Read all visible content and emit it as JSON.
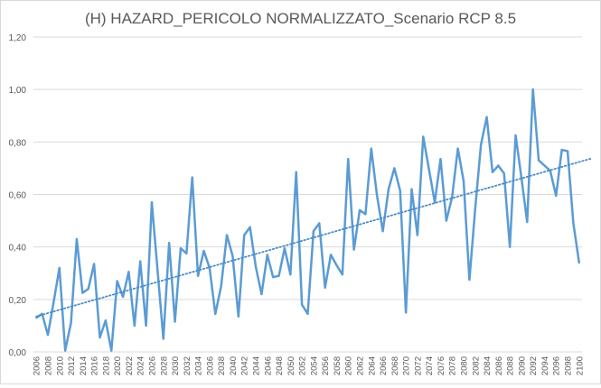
{
  "chart_data": {
    "type": "line",
    "title": "(H) HAZARD_PERICOLO NORMALIZZATO_Scenario RCP 8.5",
    "xlabel": "",
    "ylabel": "",
    "ylim": [
      0,
      1.2
    ],
    "yticks": [
      "0,00",
      "0,20",
      "0,40",
      "0,60",
      "0,80",
      "1,00",
      "1,20"
    ],
    "grid": true,
    "legend": "none",
    "x_tick_labels": [
      "2006",
      "2008",
      "2010",
      "2012",
      "2014",
      "2016",
      "2018",
      "2020",
      "2022",
      "2024",
      "2026",
      "2028",
      "2030",
      "2032",
      "2034",
      "2036",
      "2038",
      "2040",
      "2042",
      "2044",
      "2046",
      "2048",
      "2050",
      "2052",
      "2054",
      "2056",
      "2058",
      "2060",
      "2062",
      "2064",
      "2066",
      "2068",
      "2070",
      "2072",
      "2074",
      "2076",
      "2078",
      "2080",
      "2082",
      "2084",
      "2086",
      "2088",
      "2090",
      "2092",
      "2094",
      "2096",
      "2098",
      "2100"
    ],
    "x": [
      2006,
      2007,
      2008,
      2009,
      2010,
      2011,
      2012,
      2013,
      2014,
      2015,
      2016,
      2017,
      2018,
      2019,
      2020,
      2021,
      2022,
      2023,
      2024,
      2025,
      2026,
      2027,
      2028,
      2029,
      2030,
      2031,
      2032,
      2033,
      2034,
      2035,
      2036,
      2037,
      2038,
      2039,
      2040,
      2041,
      2042,
      2043,
      2044,
      2045,
      2046,
      2047,
      2048,
      2049,
      2050,
      2051,
      2052,
      2053,
      2054,
      2055,
      2056,
      2057,
      2058,
      2059,
      2060,
      2061,
      2062,
      2063,
      2064,
      2065,
      2066,
      2067,
      2068,
      2069,
      2070,
      2071,
      2072,
      2073,
      2074,
      2075,
      2076,
      2077,
      2078,
      2079,
      2080,
      2081,
      2082,
      2083,
      2084,
      2085,
      2086,
      2087,
      2088,
      2089,
      2090,
      2091,
      2092,
      2093,
      2094,
      2095,
      2096,
      2097,
      2098,
      2099,
      2100
    ],
    "series": [
      {
        "values": [
          0.13,
          0.145,
          0.065,
          0.19,
          0.32,
          0.005,
          0.11,
          0.43,
          0.225,
          0.24,
          0.335,
          0.055,
          0.12,
          0.005,
          0.27,
          0.21,
          0.305,
          0.1,
          0.345,
          0.1,
          0.57,
          0.31,
          0.05,
          0.415,
          0.115,
          0.395,
          0.375,
          0.665,
          0.29,
          0.385,
          0.32,
          0.145,
          0.25,
          0.445,
          0.365,
          0.135,
          0.445,
          0.475,
          0.325,
          0.22,
          0.37,
          0.285,
          0.29,
          0.395,
          0.295,
          0.685,
          0.18,
          0.145,
          0.46,
          0.49,
          0.245,
          0.37,
          0.33,
          0.295,
          0.735,
          0.39,
          0.54,
          0.525,
          0.775,
          0.595,
          0.46,
          0.62,
          0.7,
          0.615,
          0.15,
          0.62,
          0.445,
          0.82,
          0.695,
          0.57,
          0.735,
          0.5,
          0.59,
          0.775,
          0.65,
          0.275,
          0.545,
          0.79,
          0.895,
          0.685,
          0.71,
          0.68,
          0.4,
          0.825,
          0.665,
          0.495,
          1.0,
          0.73,
          0.71,
          0.69,
          0.595,
          0.77,
          0.765,
          0.49,
          0.34
        ],
        "color": "#5b9bd5"
      }
    ],
    "trendline": {
      "type": "linear",
      "style": "dotted",
      "color": "#4a8bc9"
    }
  }
}
